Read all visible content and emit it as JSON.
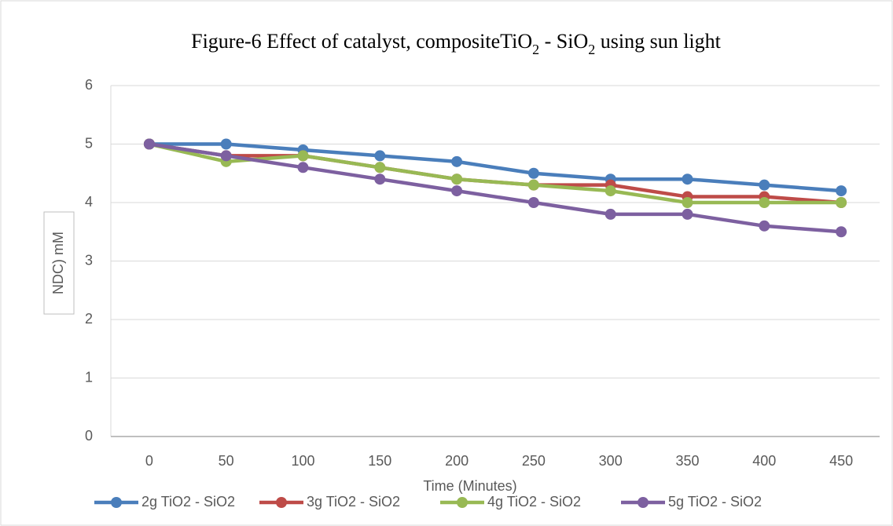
{
  "chart_data": {
    "type": "line",
    "title": [
      "Figure-6 Effect of catalyst, compositeTiO",
      "2",
      " - SiO",
      "2",
      " using sun light"
    ],
    "xlabel": "Time (Minutes)",
    "ylabel": "NDC) mM",
    "categories": [
      "0",
      "50",
      "100",
      "150",
      "200",
      "250",
      "300",
      "350",
      "400",
      "450"
    ],
    "series": [
      {
        "name": "2g TiO2 - SiO2",
        "color": "#4a7ebb",
        "values": [
          5,
          5,
          4.9,
          4.8,
          4.7,
          4.5,
          4.4,
          4.4,
          4.3,
          4.2
        ]
      },
      {
        "name": "3g TiO2 - SiO2",
        "color": "#be4b48",
        "values": [
          5,
          4.8,
          4.8,
          4.6,
          4.4,
          4.3,
          4.3,
          4.1,
          4.1,
          4.0
        ]
      },
      {
        "name": "4g TiO2 - SiO2",
        "color": "#98b954",
        "values": [
          5,
          4.7,
          4.8,
          4.6,
          4.4,
          4.3,
          4.2,
          4.0,
          4.0,
          4.0
        ]
      },
      {
        "name": "5g TiO2 - SiO2",
        "color": "#7d60a0",
        "values": [
          5,
          4.8,
          4.6,
          4.4,
          4.2,
          4.0,
          3.8,
          3.8,
          3.6,
          3.5
        ]
      }
    ],
    "ylim": [
      0,
      6
    ],
    "yticks": [
      0,
      1,
      2,
      3,
      4,
      5,
      6
    ],
    "grid": true,
    "legend": "bottom"
  }
}
